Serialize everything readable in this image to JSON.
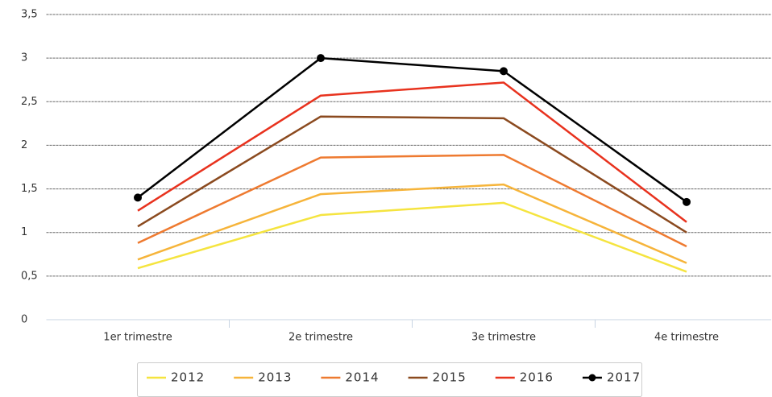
{
  "chart_data": {
    "type": "line",
    "categories": [
      "1er trimestre",
      "2e trimestre",
      "3e trimestre",
      "4e trimestre"
    ],
    "series": [
      {
        "name": "2012",
        "color": "#f5e43f",
        "values": [
          0.59,
          1.2,
          1.34,
          0.55
        ]
      },
      {
        "name": "2013",
        "color": "#f6b43a",
        "values": [
          0.69,
          1.44,
          1.55,
          0.65
        ]
      },
      {
        "name": "2014",
        "color": "#ee7a30",
        "values": [
          0.88,
          1.86,
          1.89,
          0.84
        ]
      },
      {
        "name": "2015",
        "color": "#8b4a1f",
        "values": [
          1.07,
          2.33,
          2.31,
          1.0
        ]
      },
      {
        "name": "2016",
        "color": "#e8321e",
        "values": [
          1.25,
          2.57,
          2.72,
          1.12
        ]
      },
      {
        "name": "2017",
        "color": "#000000",
        "values": [
          1.4,
          3.0,
          2.85,
          1.35
        ],
        "markers": true
      }
    ],
    "ylim": [
      0,
      3.5
    ],
    "yticks": [
      0,
      {
        "value": 0.5,
        "label": "0,5"
      },
      1,
      {
        "value": 1.5,
        "label": "1,5"
      },
      2,
      {
        "value": 2.5,
        "label": "2,5"
      },
      3,
      {
        "value": 3.5,
        "label": "3,5"
      }
    ],
    "grid": true,
    "legend": "bottom"
  }
}
